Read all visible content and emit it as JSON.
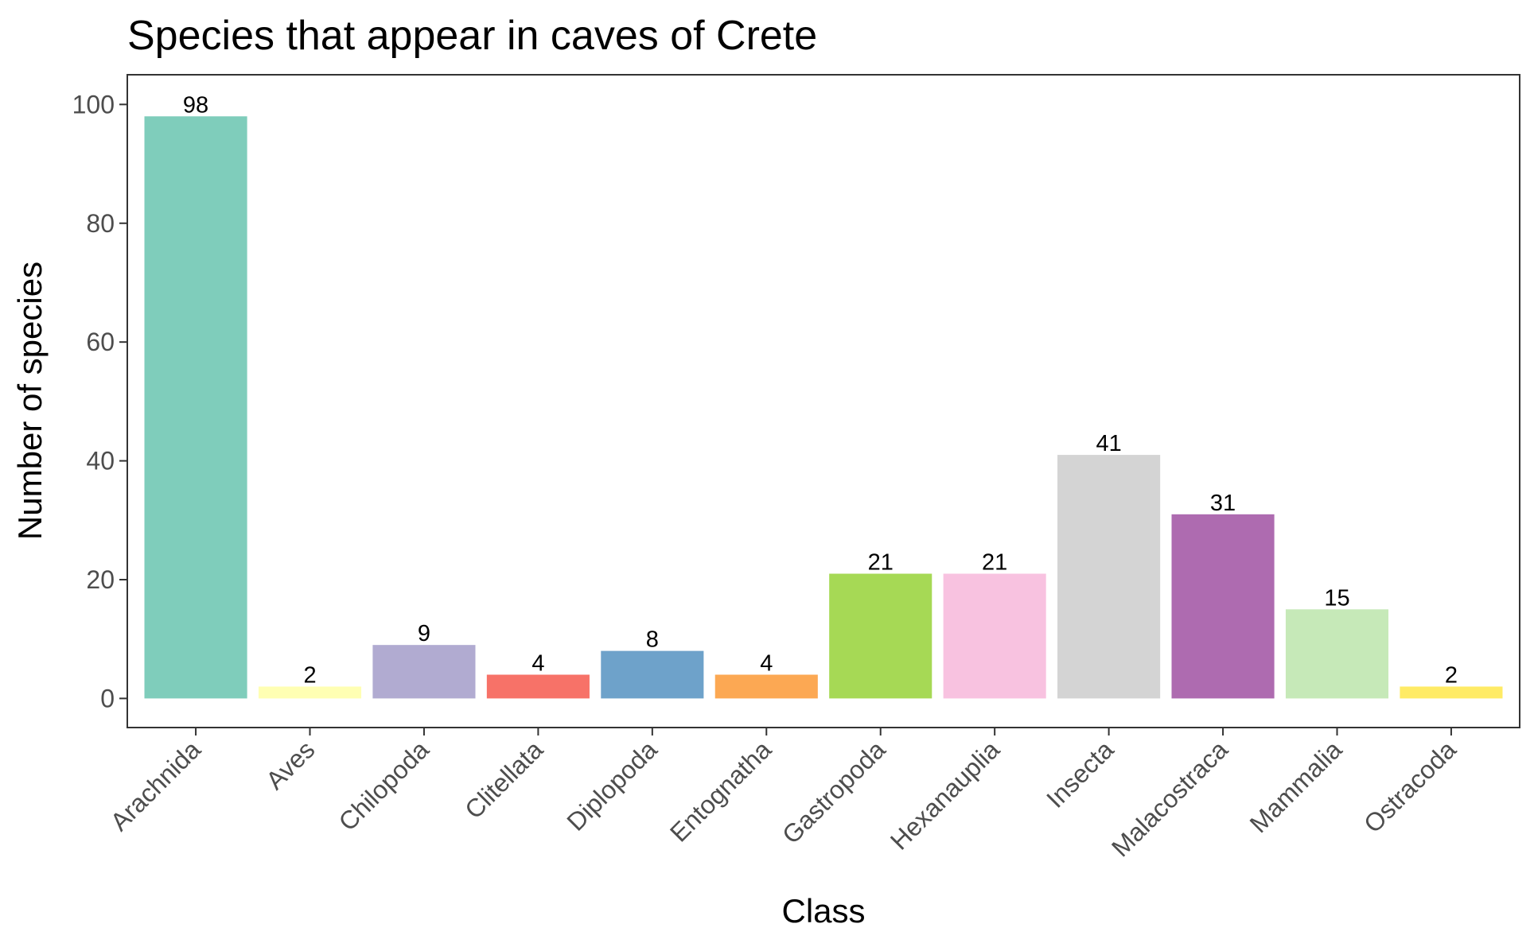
{
  "chart_data": {
    "type": "bar",
    "title": "Species that appear in caves of Crete",
    "xlabel": "Class",
    "ylabel": "Number of species",
    "categories": [
      "Arachnida",
      "Aves",
      "Chilopoda",
      "Clitellata",
      "Diplopoda",
      "Entognatha",
      "Gastropoda",
      "Hexanauplia",
      "Insecta",
      "Malacostraca",
      "Mammalia",
      "Ostracoda"
    ],
    "values": [
      98,
      2,
      9,
      4,
      8,
      4,
      21,
      21,
      41,
      31,
      15,
      2
    ],
    "colors": [
      "#7fcdbb",
      "#ffffb3",
      "#b1abd1",
      "#f77268",
      "#6ea2ca",
      "#fca853",
      "#a6d955",
      "#f8c2e0",
      "#d4d4d4",
      "#ae6bb0",
      "#c6e9b8",
      "#ffeb65"
    ],
    "y_ticks": [
      0,
      20,
      40,
      60,
      80,
      100
    ],
    "ylim": [
      -4.9,
      105
    ],
    "grid": false,
    "legend": "none"
  }
}
